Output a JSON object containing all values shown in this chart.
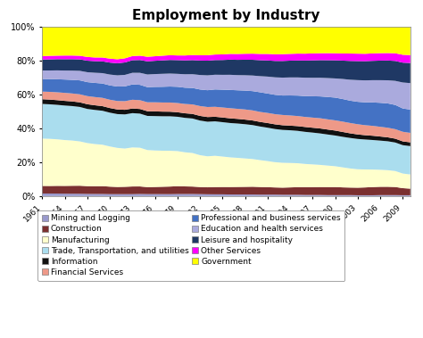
{
  "title": "Employment by Industry",
  "years": [
    1961,
    1962,
    1963,
    1964,
    1965,
    1966,
    1967,
    1968,
    1969,
    1970,
    1971,
    1972,
    1973,
    1974,
    1975,
    1976,
    1977,
    1978,
    1979,
    1980,
    1981,
    1982,
    1983,
    1984,
    1985,
    1986,
    1987,
    1988,
    1989,
    1990,
    1991,
    1992,
    1993,
    1994,
    1995,
    1996,
    1997,
    1998,
    1999,
    2000,
    2001,
    2002,
    2003,
    2004,
    2005,
    2006,
    2007,
    2008,
    2009,
    2010
  ],
  "series": [
    {
      "label": "Mining and Logging",
      "color": "#9999CC",
      "values": [
        1.5,
        1.5,
        1.5,
        1.4,
        1.4,
        1.4,
        1.3,
        1.3,
        1.3,
        1.2,
        1.2,
        1.2,
        1.2,
        1.3,
        1.2,
        1.2,
        1.2,
        1.2,
        1.3,
        1.3,
        1.3,
        1.2,
        1.1,
        1.1,
        1.1,
        1.0,
        1.0,
        1.0,
        1.0,
        0.9,
        0.9,
        0.9,
        0.8,
        0.8,
        0.8,
        0.7,
        0.7,
        0.7,
        0.6,
        0.6,
        0.6,
        0.6,
        0.5,
        0.5,
        0.5,
        0.6,
        0.6,
        0.6,
        0.5,
        0.5
      ]
    },
    {
      "label": "Construction",
      "color": "#7B3030",
      "values": [
        4.5,
        4.5,
        4.6,
        4.7,
        4.8,
        4.9,
        4.8,
        4.8,
        4.9,
        4.7,
        4.5,
        4.6,
        4.8,
        4.7,
        4.3,
        4.4,
        4.6,
        4.8,
        5.0,
        4.8,
        4.7,
        4.4,
        4.3,
        4.6,
        4.7,
        4.8,
        4.9,
        5.0,
        5.1,
        5.0,
        4.8,
        4.6,
        4.6,
        4.8,
        5.0,
        5.1,
        5.2,
        5.3,
        5.4,
        5.4,
        5.1,
        4.9,
        4.9,
        5.1,
        5.4,
        5.5,
        5.5,
        5.3,
        4.5,
        4.2
      ]
    },
    {
      "label": "Manufacturing",
      "color": "#FFFFCC",
      "values": [
        28.0,
        28.0,
        27.8,
        27.5,
        27.3,
        27.0,
        26.5,
        26.2,
        26.0,
        25.2,
        24.5,
        24.0,
        24.5,
        24.2,
        22.8,
        22.5,
        22.5,
        22.6,
        22.5,
        21.6,
        21.2,
        19.8,
        19.2,
        19.8,
        19.5,
        19.0,
        18.8,
        18.5,
        18.1,
        17.5,
        16.8,
        16.2,
        16.0,
        15.9,
        15.7,
        15.3,
        15.0,
        14.7,
        14.3,
        13.9,
        13.2,
        12.4,
        11.9,
        11.7,
        11.5,
        11.2,
        10.9,
        10.4,
        9.3,
        9.0
      ]
    },
    {
      "label": "Trade, Transportation, and utilities",
      "color": "#AADDEE",
      "values": [
        20.5,
        20.5,
        20.6,
        20.7,
        20.8,
        21.0,
        21.0,
        21.2,
        21.3,
        21.2,
        21.2,
        21.4,
        21.5,
        21.3,
        21.0,
        21.2,
        21.5,
        21.8,
        22.0,
        21.8,
        21.8,
        21.5,
        21.4,
        21.8,
        22.0,
        22.0,
        22.2,
        22.3,
        22.2,
        21.9,
        21.5,
        21.2,
        21.1,
        21.2,
        21.2,
        21.1,
        21.0,
        20.9,
        20.7,
        20.5,
        20.1,
        19.8,
        19.6,
        19.5,
        19.4,
        19.2,
        19.0,
        18.6,
        18.0,
        18.0
      ]
    },
    {
      "label": "Information",
      "color": "#111111",
      "values": [
        2.8,
        2.8,
        2.8,
        2.8,
        2.8,
        2.8,
        2.9,
        2.9,
        2.9,
        2.9,
        2.9,
        2.9,
        2.9,
        2.9,
        2.9,
        2.9,
        2.9,
        2.9,
        2.9,
        2.9,
        2.9,
        2.9,
        2.9,
        2.9,
        3.0,
        3.0,
        3.0,
        3.0,
        3.0,
        3.0,
        3.0,
        3.0,
        3.0,
        3.0,
        3.1,
        3.2,
        3.2,
        3.3,
        3.3,
        3.3,
        3.2,
        3.0,
        2.9,
        2.8,
        2.8,
        2.7,
        2.6,
        2.5,
        2.4,
        2.4
      ]
    },
    {
      "label": "Financial Services",
      "color": "#EE9988",
      "values": [
        4.5,
        4.6,
        4.7,
        4.8,
        4.8,
        4.9,
        5.0,
        5.1,
        5.2,
        5.2,
        5.3,
        5.4,
        5.5,
        5.5,
        5.5,
        5.6,
        5.7,
        5.8,
        5.9,
        5.9,
        6.0,
        6.1,
        6.2,
        6.3,
        6.4,
        6.5,
        6.5,
        6.6,
        6.6,
        6.5,
        6.5,
        6.5,
        6.6,
        6.6,
        6.6,
        6.6,
        6.7,
        6.8,
        6.8,
        6.8,
        6.8,
        6.7,
        6.6,
        6.5,
        6.5,
        6.4,
        6.3,
        6.2,
        6.1,
        6.0
      ]
    },
    {
      "label": "Professional and business services",
      "color": "#4472C4",
      "values": [
        7.5,
        7.6,
        7.8,
        8.0,
        8.2,
        8.5,
        8.6,
        8.8,
        9.0,
        9.0,
        9.1,
        9.3,
        9.6,
        9.6,
        9.3,
        9.5,
        9.8,
        10.1,
        10.4,
        10.3,
        10.4,
        10.3,
        10.4,
        11.0,
        11.4,
        11.7,
        12.0,
        12.3,
        12.6,
        12.8,
        12.5,
        12.4,
        12.5,
        13.0,
        13.4,
        13.7,
        14.1,
        14.5,
        14.9,
        15.2,
        14.9,
        14.5,
        14.5,
        14.9,
        15.4,
        15.8,
        16.0,
        15.8,
        14.8,
        14.8
      ]
    },
    {
      "label": "Education and health services",
      "color": "#AAAADD",
      "values": [
        5.0,
        5.1,
        5.3,
        5.4,
        5.6,
        5.8,
        6.1,
        6.3,
        6.5,
        6.8,
        7.0,
        7.2,
        7.3,
        7.5,
        7.8,
        7.9,
        8.1,
        8.2,
        8.3,
        8.5,
        8.7,
        9.0,
        9.2,
        9.3,
        9.5,
        9.7,
        9.8,
        10.0,
        10.2,
        10.5,
        10.9,
        11.2,
        11.5,
        11.7,
        11.9,
        12.1,
        12.2,
        12.4,
        12.6,
        12.8,
        13.2,
        13.6,
        14.0,
        14.3,
        14.6,
        14.9,
        15.2,
        15.7,
        16.5,
        16.8
      ]
    },
    {
      "label": "Leisure and hospitality",
      "color": "#1F3864",
      "values": [
        6.5,
        6.6,
        6.7,
        6.8,
        6.9,
        7.0,
        7.1,
        7.2,
        7.4,
        7.5,
        7.6,
        7.8,
        7.9,
        8.0,
        8.1,
        8.2,
        8.4,
        8.6,
        8.8,
        8.8,
        8.9,
        9.0,
        9.1,
        9.3,
        9.5,
        9.7,
        9.9,
        10.1,
        10.3,
        10.4,
        10.4,
        10.5,
        10.7,
        10.9,
        11.1,
        11.3,
        11.5,
        11.7,
        11.9,
        12.1,
        12.1,
        12.2,
        12.3,
        12.5,
        12.7,
        12.9,
        13.0,
        13.0,
        12.6,
        12.8
      ]
    },
    {
      "label": "Other Services",
      "color": "#FF00FF",
      "values": [
        2.0,
        2.1,
        2.1,
        2.2,
        2.2,
        2.2,
        2.3,
        2.3,
        2.4,
        2.5,
        2.5,
        2.6,
        2.6,
        2.7,
        2.8,
        2.8,
        2.9,
        3.0,
        3.0,
        3.1,
        3.2,
        3.3,
        3.4,
        3.5,
        3.6,
        3.7,
        3.8,
        3.9,
        4.0,
        4.1,
        4.2,
        4.3,
        4.4,
        4.4,
        4.5,
        4.5,
        4.6,
        4.6,
        4.7,
        4.7,
        4.7,
        4.8,
        4.8,
        4.8,
        4.9,
        4.9,
        4.9,
        5.0,
        5.0,
        5.0
      ]
    },
    {
      "label": "Government",
      "color": "#FFFF00",
      "values": [
        17.2,
        17.1,
        17.1,
        17.1,
        17.2,
        17.5,
        18.4,
        18.9,
        19.1,
        19.8,
        20.2,
        19.6,
        18.2,
        17.9,
        18.3,
        18.0,
        17.9,
        17.8,
        18.2,
        18.0,
        17.7,
        17.5,
        17.4,
        17.4,
        17.5,
        17.2,
        17.4,
        17.4,
        17.4,
        17.5,
        17.3,
        17.4,
        17.4,
        17.4,
        17.4,
        17.5,
        17.4,
        17.4,
        17.4,
        17.5,
        17.4,
        17.2,
        17.2,
        17.4,
        17.3,
        17.2,
        17.1,
        17.1,
        17.6,
        17.8
      ]
    }
  ],
  "xticks": [
    1961,
    1964,
    1967,
    1970,
    1973,
    1976,
    1979,
    1982,
    1985,
    1988,
    1991,
    1994,
    1997,
    2000,
    2003,
    2006,
    2009
  ],
  "legend_order": [
    [
      0,
      1
    ],
    [
      2,
      3
    ],
    [
      4,
      5
    ],
    [
      6,
      7
    ],
    [
      8,
      9
    ],
    [
      10
    ]
  ],
  "background_color": "#FFFFFF"
}
